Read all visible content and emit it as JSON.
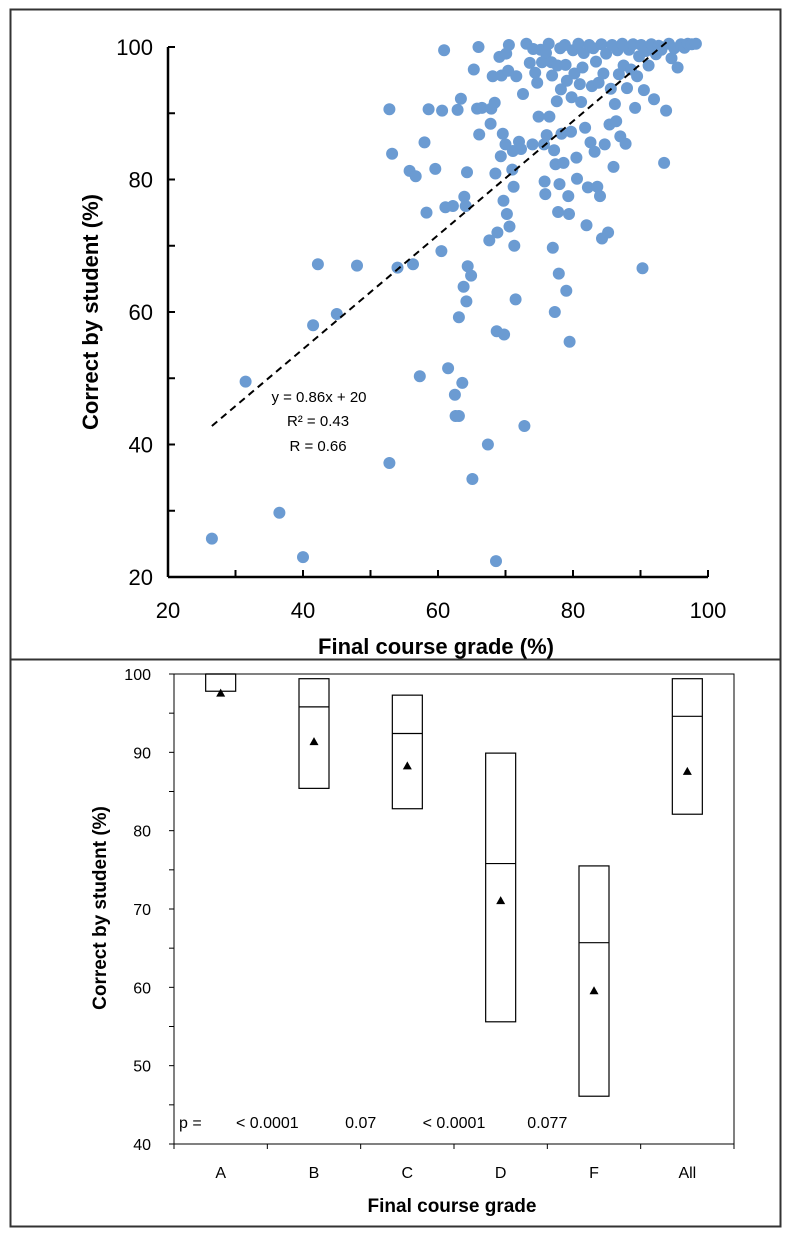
{
  "chart_data": [
    {
      "type": "scatter",
      "xlabel": "Final course grade (%)",
      "ylabel": "Correct by student (%)",
      "xlim": [
        20,
        100
      ],
      "ylim": [
        20,
        100
      ],
      "x_ticks": [
        "20",
        "40",
        "60",
        "80",
        "100"
      ],
      "y_ticks": [
        "20",
        "40",
        "60",
        "80",
        "100"
      ],
      "grid": false,
      "marker_color": "#6b9bd2",
      "trendline": {
        "style": "dashed",
        "slope": 0.86,
        "intercept": 20,
        "x_range": [
          26.5,
          94
        ],
        "equation": "y = 0.86x + 20",
        "r2": "R² = 0.43",
        "r": "R = 0.66"
      },
      "points": [
        [
          26.5,
          25.8
        ],
        [
          31.5,
          49.5
        ],
        [
          36.5,
          29.7
        ],
        [
          40,
          23
        ],
        [
          41.5,
          58
        ],
        [
          42.2,
          67.2
        ],
        [
          45,
          59.7
        ],
        [
          48,
          67
        ],
        [
          52.8,
          90.6
        ],
        [
          52.8,
          37.2
        ],
        [
          53.2,
          83.9
        ],
        [
          54,
          66.7
        ],
        [
          55.8,
          81.3
        ],
        [
          56.3,
          67.2
        ],
        [
          56.7,
          80.5
        ],
        [
          57.3,
          50.3
        ],
        [
          58,
          85.6
        ],
        [
          58.3,
          75
        ],
        [
          58.6,
          90.6
        ],
        [
          59.6,
          81.6
        ],
        [
          60.5,
          69.2
        ],
        [
          60.6,
          90.4
        ],
        [
          60.9,
          99.5
        ],
        [
          61.1,
          75.8
        ],
        [
          61.5,
          51.5
        ],
        [
          62.2,
          76
        ],
        [
          62.5,
          47.5
        ],
        [
          62.6,
          44.3
        ],
        [
          62.9,
          90.5
        ],
        [
          63.1,
          59.2
        ],
        [
          63.1,
          44.3
        ],
        [
          63.4,
          92.2
        ],
        [
          63.6,
          49.3
        ],
        [
          63.8,
          63.8
        ],
        [
          63.9,
          77.4
        ],
        [
          64.1,
          76
        ],
        [
          64.2,
          61.6
        ],
        [
          64.3,
          81.1
        ],
        [
          64.4,
          66.9
        ],
        [
          64.9,
          65.5
        ],
        [
          65.1,
          34.8
        ],
        [
          65.3,
          96.6
        ],
        [
          65.8,
          90.7
        ],
        [
          66,
          100
        ],
        [
          66.1,
          86.8
        ],
        [
          66.5,
          90.8
        ],
        [
          67.4,
          40
        ],
        [
          67.6,
          70.8
        ],
        [
          67.8,
          88.4
        ],
        [
          67.9,
          90.7
        ],
        [
          68.1,
          95.6
        ],
        [
          68.4,
          91.6
        ],
        [
          68.5,
          80.9
        ],
        [
          68.6,
          22.4
        ],
        [
          68.7,
          57.1
        ],
        [
          68.8,
          72
        ],
        [
          69.1,
          98.5
        ],
        [
          69.3,
          83.5
        ],
        [
          69.4,
          95.7
        ],
        [
          69.6,
          86.9
        ],
        [
          69.7,
          76.8
        ],
        [
          69.8,
          56.6
        ],
        [
          70,
          85.3
        ],
        [
          70.1,
          99
        ],
        [
          70.2,
          74.8
        ],
        [
          70.4,
          96.4
        ],
        [
          70.5,
          100.3
        ],
        [
          70.6,
          72.9
        ],
        [
          71,
          81.5
        ],
        [
          71.1,
          84.3
        ],
        [
          71.2,
          78.9
        ],
        [
          71.3,
          70
        ],
        [
          71.5,
          61.9
        ],
        [
          71.6,
          95.6
        ],
        [
          72,
          85.7
        ],
        [
          72.3,
          84.6
        ],
        [
          72.6,
          92.9
        ],
        [
          72.8,
          42.8
        ],
        [
          73.1,
          100.5
        ],
        [
          73.6,
          97.6
        ],
        [
          74,
          85.3
        ],
        [
          74.1,
          99.7
        ],
        [
          74.4,
          96.1
        ],
        [
          74.7,
          94.6
        ],
        [
          74.9,
          89.5
        ],
        [
          75.2,
          99.6
        ],
        [
          75.4,
          97.7
        ],
        [
          75.7,
          85.3
        ],
        [
          75.8,
          79.7
        ],
        [
          75.9,
          77.8
        ],
        [
          76,
          99.1
        ],
        [
          76.1,
          86.7
        ],
        [
          76.4,
          100.5
        ],
        [
          76.5,
          89.5
        ],
        [
          76.8,
          97.7
        ],
        [
          76.9,
          95.7
        ],
        [
          77,
          69.7
        ],
        [
          77.2,
          84.4
        ],
        [
          77.3,
          60
        ],
        [
          77.4,
          82.3
        ],
        [
          77.6,
          91.8
        ],
        [
          77.7,
          97.2
        ],
        [
          77.8,
          75.1
        ],
        [
          77.9,
          65.8
        ],
        [
          78,
          79.3
        ],
        [
          78.1,
          99.8
        ],
        [
          78.2,
          93.6
        ],
        [
          78.3,
          86.9
        ],
        [
          78.6,
          82.5
        ],
        [
          78.8,
          100.3
        ],
        [
          78.9,
          97.3
        ],
        [
          79,
          63.2
        ],
        [
          79.1,
          94.9
        ],
        [
          79.3,
          77.5
        ],
        [
          79.4,
          74.8
        ],
        [
          79.5,
          55.5
        ],
        [
          79.7,
          87.2
        ],
        [
          79.8,
          92.4
        ],
        [
          80,
          99.5
        ],
        [
          80.2,
          96
        ],
        [
          80.5,
          83.3
        ],
        [
          80.6,
          80.1
        ],
        [
          80.8,
          100.5
        ],
        [
          81,
          94.4
        ],
        [
          81.2,
          91.7
        ],
        [
          81.4,
          96.9
        ],
        [
          81.6,
          99.1
        ],
        [
          81.8,
          87.8
        ],
        [
          82,
          73.1
        ],
        [
          82.2,
          78.8
        ],
        [
          82.4,
          100.3
        ],
        [
          82.6,
          85.6
        ],
        [
          82.8,
          94.1
        ],
        [
          83,
          99.8
        ],
        [
          83.2,
          84.2
        ],
        [
          83.4,
          97.8
        ],
        [
          83.6,
          78.9
        ],
        [
          83.8,
          94.6
        ],
        [
          84,
          77.5
        ],
        [
          84.2,
          100.4
        ],
        [
          84.3,
          71.1
        ],
        [
          84.5,
          96
        ],
        [
          84.7,
          85.3
        ],
        [
          84.9,
          99
        ],
        [
          85.2,
          72
        ],
        [
          85.4,
          88.3
        ],
        [
          85.6,
          93.7
        ],
        [
          85.8,
          100.3
        ],
        [
          86,
          81.9
        ],
        [
          86.2,
          91.4
        ],
        [
          86.4,
          88.8
        ],
        [
          86.6,
          99.5
        ],
        [
          86.8,
          95.9
        ],
        [
          87,
          86.5
        ],
        [
          87.3,
          100.5
        ],
        [
          87.5,
          97.2
        ],
        [
          87.8,
          85.4
        ],
        [
          88,
          93.8
        ],
        [
          88.3,
          99.6
        ],
        [
          88.6,
          96.6
        ],
        [
          88.9,
          100.4
        ],
        [
          89.2,
          90.8
        ],
        [
          89.5,
          95.6
        ],
        [
          89.8,
          98.6
        ],
        [
          90.1,
          100.3
        ],
        [
          90.3,
          66.6
        ],
        [
          90.5,
          93.5
        ],
        [
          90.8,
          99.4
        ],
        [
          91.2,
          97.2
        ],
        [
          91.6,
          100.4
        ],
        [
          92,
          92.1
        ],
        [
          92.3,
          98.9
        ],
        [
          92.7,
          100.2
        ],
        [
          93.1,
          99.6
        ],
        [
          93.5,
          82.5
        ],
        [
          93.8,
          90.4
        ],
        [
          94.2,
          100.5
        ],
        [
          94.6,
          98.3
        ],
        [
          95,
          99.8
        ],
        [
          95.5,
          96.9
        ],
        [
          96,
          100.4
        ],
        [
          96.5,
          99.9
        ],
        [
          97,
          100.5
        ],
        [
          97.6,
          100.4
        ],
        [
          98.2,
          100.5
        ]
      ]
    },
    {
      "type": "box",
      "xlabel": "Final course grade",
      "ylabel": "Correct by student (%)",
      "ylim": [
        40,
        100
      ],
      "y_ticks": [
        "40",
        "50",
        "60",
        "70",
        "80",
        "90",
        "100"
      ],
      "categories": [
        "A",
        "B",
        "C",
        "D",
        "F",
        "All"
      ],
      "boxes": [
        {
          "q1": 97.8,
          "median": 100,
          "q3": 100,
          "mean": 97.5
        },
        {
          "q1": 85.4,
          "median": 95.8,
          "q3": 99.4,
          "mean": 91.3
        },
        {
          "q1": 82.8,
          "median": 92.4,
          "q3": 97.3,
          "mean": 88.2
        },
        {
          "q1": 55.6,
          "median": 75.8,
          "q3": 89.9,
          "mean": 71
        },
        {
          "q1": 46.1,
          "median": 65.7,
          "q3": 75.5,
          "mean": 59.5
        },
        {
          "q1": 82.1,
          "median": 94.6,
          "q3": 99.4,
          "mean": 87.5
        }
      ],
      "p_label": "p =",
      "p_values": [
        "< 0.0001",
        "0.07",
        "< 0.0001",
        "0.077"
      ]
    }
  ]
}
